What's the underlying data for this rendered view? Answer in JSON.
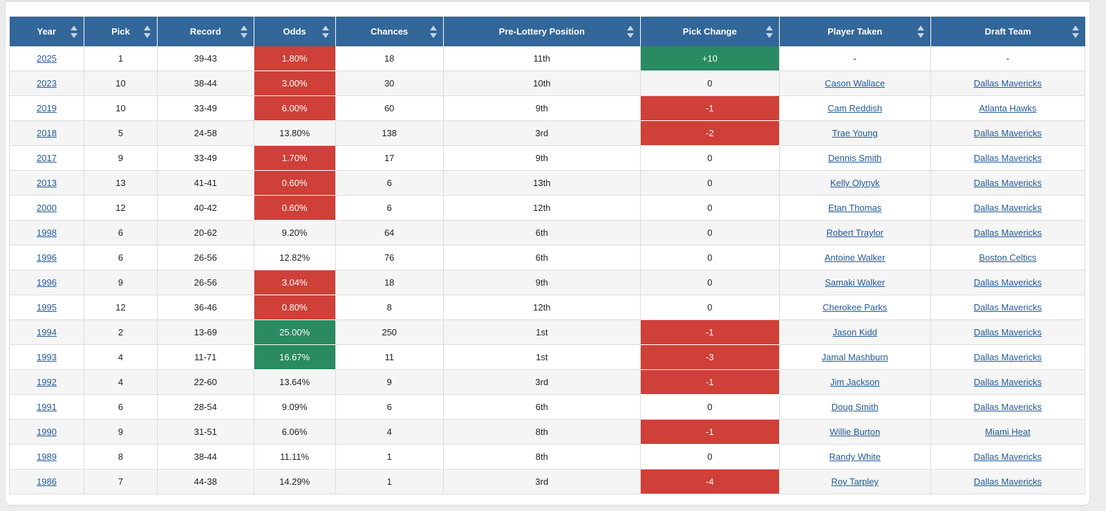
{
  "table": {
    "headers": [
      "Year",
      "Pick",
      "Record",
      "Odds",
      "Chances",
      "Pre-Lottery Position",
      "Pick Change",
      "Player Taken",
      "Draft Team"
    ],
    "rows": [
      {
        "year": "2025",
        "pick": "1",
        "record": "39-43",
        "odds": "1.80%",
        "odds_status": "red",
        "chances": "18",
        "position": "11th",
        "change": "+10",
        "change_status": "green",
        "player": "-",
        "team": "-"
      },
      {
        "year": "2023",
        "pick": "10",
        "record": "38-44",
        "odds": "3.00%",
        "odds_status": "red",
        "chances": "30",
        "position": "10th",
        "change": "0",
        "change_status": "",
        "player": "Cason Wallace",
        "team": "Dallas Mavericks"
      },
      {
        "year": "2019",
        "pick": "10",
        "record": "33-49",
        "odds": "6.00%",
        "odds_status": "red",
        "chances": "60",
        "position": "9th",
        "change": "-1",
        "change_status": "red",
        "player": "Cam Reddish",
        "team": "Atlanta Hawks"
      },
      {
        "year": "2018",
        "pick": "5",
        "record": "24-58",
        "odds": "13.80%",
        "odds_status": "",
        "chances": "138",
        "position": "3rd",
        "change": "-2",
        "change_status": "red",
        "player": "Trae Young",
        "team": "Dallas Mavericks"
      },
      {
        "year": "2017",
        "pick": "9",
        "record": "33-49",
        "odds": "1.70%",
        "odds_status": "red",
        "chances": "17",
        "position": "9th",
        "change": "0",
        "change_status": "",
        "player": "Dennis Smith",
        "team": "Dallas Mavericks"
      },
      {
        "year": "2013",
        "pick": "13",
        "record": "41-41",
        "odds": "0.60%",
        "odds_status": "red",
        "chances": "6",
        "position": "13th",
        "change": "0",
        "change_status": "",
        "player": "Kelly Olynyk",
        "team": "Dallas Mavericks"
      },
      {
        "year": "2000",
        "pick": "12",
        "record": "40-42",
        "odds": "0.60%",
        "odds_status": "red",
        "chances": "6",
        "position": "12th",
        "change": "0",
        "change_status": "",
        "player": "Etan Thomas",
        "team": "Dallas Mavericks"
      },
      {
        "year": "1998",
        "pick": "6",
        "record": "20-62",
        "odds": "9.20%",
        "odds_status": "",
        "chances": "64",
        "position": "6th",
        "change": "0",
        "change_status": "",
        "player": "Robert Traylor",
        "team": "Dallas Mavericks"
      },
      {
        "year": "1996",
        "pick": "6",
        "record": "26-56",
        "odds": "12.82%",
        "odds_status": "",
        "chances": "76",
        "position": "6th",
        "change": "0",
        "change_status": "",
        "player": "Antoine Walker",
        "team": "Boston Celtics"
      },
      {
        "year": "1996",
        "pick": "9",
        "record": "26-56",
        "odds": "3.04%",
        "odds_status": "red",
        "chances": "18",
        "position": "9th",
        "change": "0",
        "change_status": "",
        "player": "Samaki Walker",
        "team": "Dallas Mavericks"
      },
      {
        "year": "1995",
        "pick": "12",
        "record": "36-46",
        "odds": "0.80%",
        "odds_status": "red",
        "chances": "8",
        "position": "12th",
        "change": "0",
        "change_status": "",
        "player": "Cherokee Parks",
        "team": "Dallas Mavericks"
      },
      {
        "year": "1994",
        "pick": "2",
        "record": "13-69",
        "odds": "25.00%",
        "odds_status": "green",
        "chances": "250",
        "position": "1st",
        "change": "-1",
        "change_status": "red",
        "player": "Jason Kidd",
        "team": "Dallas Mavericks"
      },
      {
        "year": "1993",
        "pick": "4",
        "record": "11-71",
        "odds": "16.67%",
        "odds_status": "green",
        "chances": "11",
        "position": "1st",
        "change": "-3",
        "change_status": "red",
        "player": "Jamal Mashburn",
        "team": "Dallas Mavericks"
      },
      {
        "year": "1992",
        "pick": "4",
        "record": "22-60",
        "odds": "13.64%",
        "odds_status": "",
        "chances": "9",
        "position": "3rd",
        "change": "-1",
        "change_status": "red",
        "player": "Jim Jackson",
        "team": "Dallas Mavericks"
      },
      {
        "year": "1991",
        "pick": "6",
        "record": "28-54",
        "odds": "9.09%",
        "odds_status": "",
        "chances": "6",
        "position": "6th",
        "change": "0",
        "change_status": "",
        "player": "Doug Smith",
        "team": "Dallas Mavericks"
      },
      {
        "year": "1990",
        "pick": "9",
        "record": "31-51",
        "odds": "6.06%",
        "odds_status": "",
        "chances": "4",
        "position": "8th",
        "change": "-1",
        "change_status": "red",
        "player": "Willie Burton",
        "team": "Miami Heat"
      },
      {
        "year": "1989",
        "pick": "8",
        "record": "38-44",
        "odds": "11.11%",
        "odds_status": "",
        "chances": "1",
        "position": "8th",
        "change": "0",
        "change_status": "",
        "player": "Randy White",
        "team": "Dallas Mavericks"
      },
      {
        "year": "1986",
        "pick": "7",
        "record": "44-38",
        "odds": "14.29%",
        "odds_status": "",
        "chances": "1",
        "position": "3rd",
        "change": "-4",
        "change_status": "red",
        "player": "Roy Tarpley",
        "team": "Dallas Mavericks"
      }
    ]
  },
  "colors": {
    "header_bg": "#336699",
    "red": "#cf4038",
    "green": "#2a8a62",
    "link": "#215a99"
  },
  "icons": {
    "sort": "sort-arrows-icon"
  }
}
